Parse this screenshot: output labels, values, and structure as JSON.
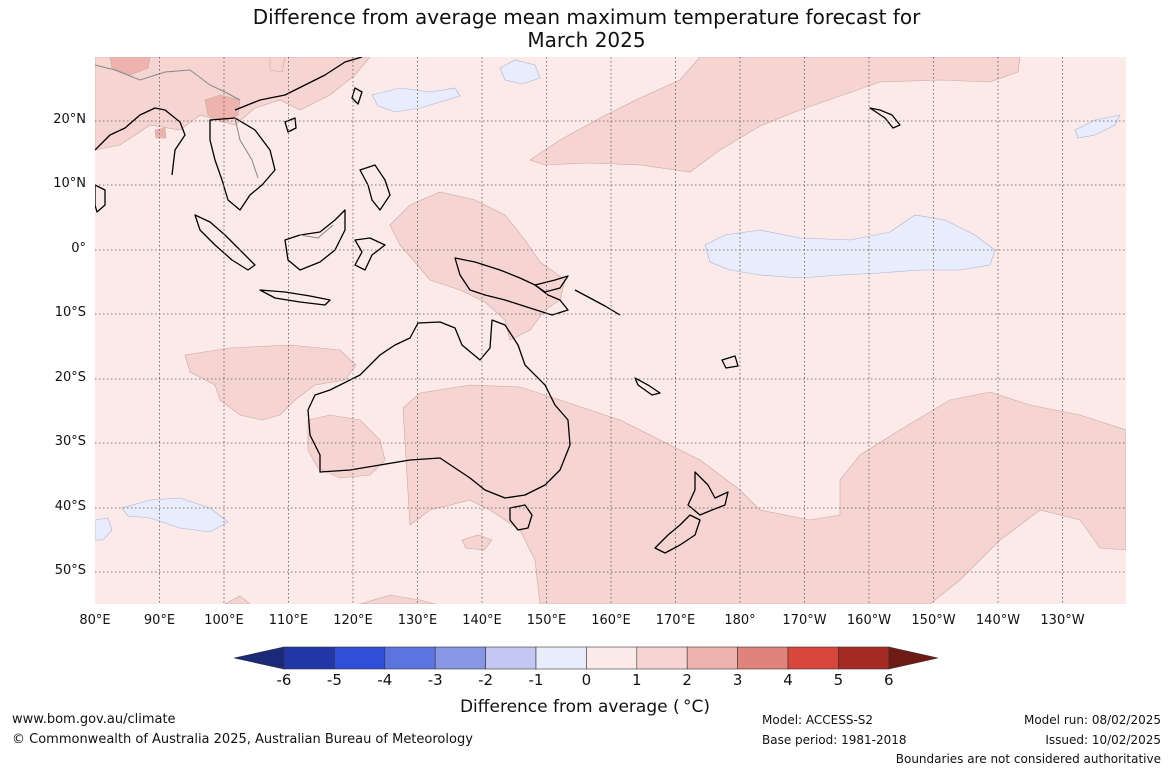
{
  "title": {
    "line1": "Difference from average mean maximum temperature forecast for",
    "line2": "March 2025"
  },
  "map": {
    "lat_labels": [
      "20°N",
      "10°N",
      "0°",
      "10°S",
      "20°S",
      "30°S",
      "40°S",
      "50°S"
    ],
    "lon_labels": [
      "80°E",
      "90°E",
      "100°E",
      "110°E",
      "120°E",
      "130°E",
      "140°E",
      "150°E",
      "160°E",
      "170°E",
      "180°",
      "170°W",
      "160°W",
      "150°W",
      "140°W",
      "130°W"
    ],
    "background_anomaly_class": "0 to 1",
    "colors": {
      "ocean_base": "#fbeae8",
      "anomaly_1_2": "#f5d4d1",
      "anomaly_2_3": "#eeb3ad",
      "anomaly_neg1_0": "#e8ecfb",
      "coastline": "#000000",
      "grid": "#555555"
    }
  },
  "colorbar": {
    "ticks": [
      "-6",
      "-5",
      "-4",
      "-3",
      "-2",
      "-1",
      "0",
      "1",
      "2",
      "3",
      "4",
      "5",
      "6"
    ],
    "colors": [
      "#1a2a78",
      "#2338a8",
      "#2f4fd8",
      "#5c74e0",
      "#8797e6",
      "#c2c8f2",
      "#e8ecfb",
      "#fbeae8",
      "#f5d4d1",
      "#eeb3ad",
      "#e2837b",
      "#d9463b",
      "#a52a22",
      "#6e1a15"
    ],
    "title": "Difference from average ( °C)"
  },
  "footer": {
    "website": "www.bom.gov.au/climate",
    "copyright": "© Commonwealth of Australia 2025, Australian Bureau of Meteorology",
    "model": "Model: ACCESS-S2",
    "base_period": "Base period: 1981-2018",
    "model_run": "Model run: 08/02/2025",
    "issued": "Issued: 10/02/2025",
    "disclaimer": "Boundaries are not considered authoritative"
  }
}
